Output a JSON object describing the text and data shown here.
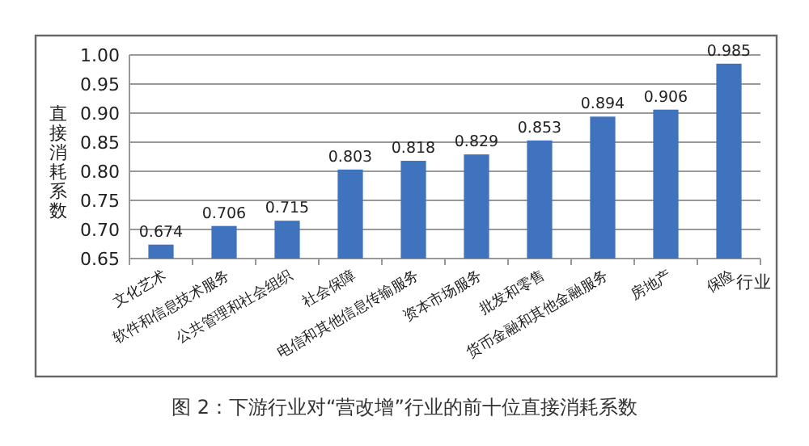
{
  "chart_data": {
    "type": "bar",
    "title": "图 2：下游行业对“营改增”行业的前十位直接消耗系数",
    "ylabel": "直接消耗系数",
    "xlabel": "行业",
    "categories": [
      "文化艺术",
      "软件和信息技术服务",
      "公共管理和社会组织",
      "社会保障",
      "电信和其他信息传输服务",
      "资本市场服务",
      "批发和零售",
      "货币金融和其他金融服务",
      "房地产",
      "保险"
    ],
    "values": [
      0.674,
      0.706,
      0.715,
      0.803,
      0.818,
      0.829,
      0.853,
      0.894,
      0.906,
      0.985
    ],
    "color": "#3f73be",
    "ylim": [
      0.65,
      1.0
    ],
    "yticks": [
      "0.65",
      "0.70",
      "0.75",
      "0.80",
      "0.85",
      "0.90",
      "0.95",
      "1.00"
    ],
    "grid": "y",
    "data_labels": true
  }
}
